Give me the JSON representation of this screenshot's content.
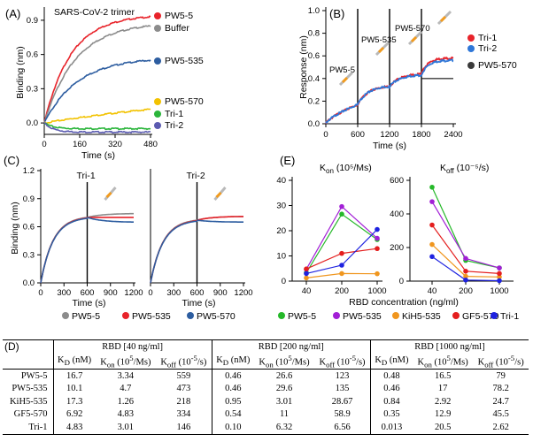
{
  "panels": {
    "a": {
      "label": "(A)",
      "title": "SARS-CoV-2  trimer",
      "ylabel": "Binding (nm)",
      "xlabel": "Time (s)",
      "yticks": [
        "0.9",
        "0.6",
        "0.3",
        "0.0"
      ],
      "xticks": [
        "0",
        "160",
        "320",
        "480"
      ]
    },
    "b": {
      "label": "(B)",
      "ylabel": "Response (nm)",
      "xlabel": "Time (s)",
      "yticks": [
        "1.0",
        "0.8",
        "0.6",
        "0.4",
        "0.2",
        "0.0"
      ],
      "xticks": [
        "0",
        "600",
        "1200",
        "1800",
        "2400"
      ],
      "annotations": [
        "PW5-5",
        "PW5-535",
        "PW5-570"
      ]
    },
    "c": {
      "label": "(C)",
      "ylabel": "Binding (nm)",
      "xlabel": "Time (s)",
      "yticks": [
        "1.2",
        "0.9",
        "0.6",
        "0.3",
        "0.0"
      ],
      "xticks": [
        "0",
        "300",
        "600",
        "900",
        "1200"
      ],
      "subtitles": [
        "Tri-1",
        "Tri-2"
      ]
    },
    "e": {
      "label": "(E)",
      "xlabel": "RBD concentration (ng/ml)",
      "kon_title_main": "K",
      "kon_title_sub": "on",
      "kon_title_rest": " (10⁵/Ms)",
      "koff_title_main": "K",
      "koff_title_sub": "off",
      "koff_title_rest": " (10⁻⁵/s)",
      "kon_yticks": [
        "40",
        "30",
        "20",
        "10",
        "0"
      ],
      "koff_yticks": [
        "600",
        "400",
        "200",
        "0"
      ],
      "xticks": [
        "40",
        "200",
        "1000"
      ]
    },
    "d": {
      "label": "(D)"
    }
  },
  "colors": {
    "red": "#e8232a",
    "gray": "#8c8c8c",
    "blue": "#2d5da0",
    "yellow": "#f2c200",
    "green": "#2bb53b",
    "purple": "#5b5bb0",
    "e_green": "#25b829",
    "e_purple": "#a21fd6",
    "e_orange": "#f0961e",
    "e_red": "#e41e1e",
    "e_blue": "#1e22e0",
    "b_blue": "#2f77d8",
    "b_dark": "#3a3a3a"
  },
  "chart_data": [
    {
      "id": "A",
      "type": "line",
      "title": "SARS-CoV-2  trimer",
      "xlabel": "Time (s)",
      "ylabel": "Binding (nm)",
      "xlim": [
        0,
        480
      ],
      "ylim": [
        -0.1,
        1.0
      ],
      "series": [
        {
          "name": "PW5-5",
          "color": "red",
          "end": 0.93,
          "tau": 120
        },
        {
          "name": "Buffer",
          "color": "gray",
          "end": 0.85,
          "tau": 140
        },
        {
          "name": "PW5-535",
          "color": "blue",
          "end": 0.55,
          "tau": 150
        },
        {
          "name": "PW5-570",
          "color": "yellow",
          "end": 0.12,
          "tau": 900
        },
        {
          "name": "Tri-1",
          "color": "green",
          "end": -0.05,
          "tau": 200
        },
        {
          "name": "Tri-2",
          "color": "purple",
          "end": -0.08,
          "tau": 200
        }
      ]
    },
    {
      "id": "B",
      "type": "line",
      "xlabel": "Time (s)",
      "ylabel": "Response (nm)",
      "xlim": [
        0,
        2400
      ],
      "ylim": [
        0,
        1.0
      ],
      "phase_times": [
        600,
        1200,
        1800
      ],
      "series": [
        {
          "name": "Tri-1",
          "color": "red",
          "levels": [
            0.17,
            0.33,
            0.44,
            0.58
          ]
        },
        {
          "name": "Tri-2",
          "color": "b_blue",
          "levels": [
            0.17,
            0.33,
            0.43,
            0.56
          ]
        },
        {
          "name": "PW5-570",
          "color": "b_dark",
          "levels": [
            0.4
          ]
        }
      ]
    },
    {
      "id": "C",
      "type": "line",
      "xlabel": "Time (s)",
      "ylabel": "Binding (nm)",
      "xlim": [
        0,
        1200
      ],
      "ylim": [
        0,
        1.2
      ],
      "switch_time": 600,
      "subplots": [
        {
          "title": "Tri-1",
          "base": 0.7,
          "post": {
            "PW5-5": 0.74,
            "PW5-535": 0.7,
            "PW5-570": 0.65
          }
        },
        {
          "title": "Tri-2",
          "base": 0.67,
          "post": {
            "PW5-5": 0.71,
            "PW5-535": 0.71,
            "PW5-570": 0.65
          }
        }
      ],
      "legend": [
        {
          "name": "PW5-5",
          "color": "gray"
        },
        {
          "name": "PW5-535",
          "color": "red"
        },
        {
          "name": "PW5-570",
          "color": "blue"
        }
      ]
    },
    {
      "id": "E",
      "type": "line",
      "xlabel": "RBD concentration (ng/ml)",
      "categories": [
        "40",
        "200",
        "1000"
      ],
      "kon": {
        "ylim": [
          0,
          40
        ],
        "series": {
          "PW5-5": [
            3.34,
            26.6,
            16.5
          ],
          "PW5-535": [
            4.7,
            29.6,
            17
          ],
          "KiH5-535": [
            1.26,
            3.01,
            2.92
          ],
          "GF5-570": [
            4.83,
            11,
            12.9
          ],
          "Tri-1": [
            3.01,
            6.32,
            20.5
          ]
        }
      },
      "koff": {
        "ylim": [
          0,
          600
        ],
        "series": {
          "PW5-5": [
            559,
            123,
            79
          ],
          "PW5-535": [
            473,
            135,
            78.2
          ],
          "KiH5-535": [
            218,
            28.67,
            24.7
          ],
          "GF5-570": [
            334,
            58.9,
            45.5
          ],
          "Tri-1": [
            146,
            6.56,
            2.62
          ]
        }
      },
      "legend": [
        {
          "name": "PW5-5",
          "color": "e_green"
        },
        {
          "name": "PW5-535",
          "color": "e_purple"
        },
        {
          "name": "KiH5-535",
          "color": "e_orange"
        },
        {
          "name": "GF5-570",
          "color": "e_red"
        },
        {
          "name": "Tri-1",
          "color": "e_blue"
        }
      ]
    }
  ],
  "table": {
    "groups": [
      "RBD [40 ng/ml]",
      "RBD [200 ng/ml]",
      "RBD [1000 ng/ml]"
    ],
    "rows": [
      {
        "name": "PW5-5",
        "values": [
          "16.7",
          "3.34",
          "559",
          "0.46",
          "26.6",
          "123",
          "0.48",
          "16.5",
          "79"
        ]
      },
      {
        "name": "PW5-535",
        "values": [
          "10.1",
          "4.7",
          "473",
          "0.46",
          "29.6",
          "135",
          "0.46",
          "17",
          "78.2"
        ]
      },
      {
        "name": "KiH5-535",
        "values": [
          "17.3",
          "1.26",
          "218",
          "0.95",
          "3.01",
          "28.67",
          "0.84",
          "2.92",
          "24.7"
        ]
      },
      {
        "name": "GF5-570",
        "values": [
          "6.92",
          "4.83",
          "334",
          "0.54",
          "11",
          "58.9",
          "0.35",
          "12.9",
          "45.5"
        ]
      },
      {
        "name": "Tri-1",
        "values": [
          "4.83",
          "3.01",
          "146",
          "0.10",
          "6.32",
          "6.56",
          "0.013",
          "20.5",
          "2.62"
        ]
      }
    ]
  }
}
